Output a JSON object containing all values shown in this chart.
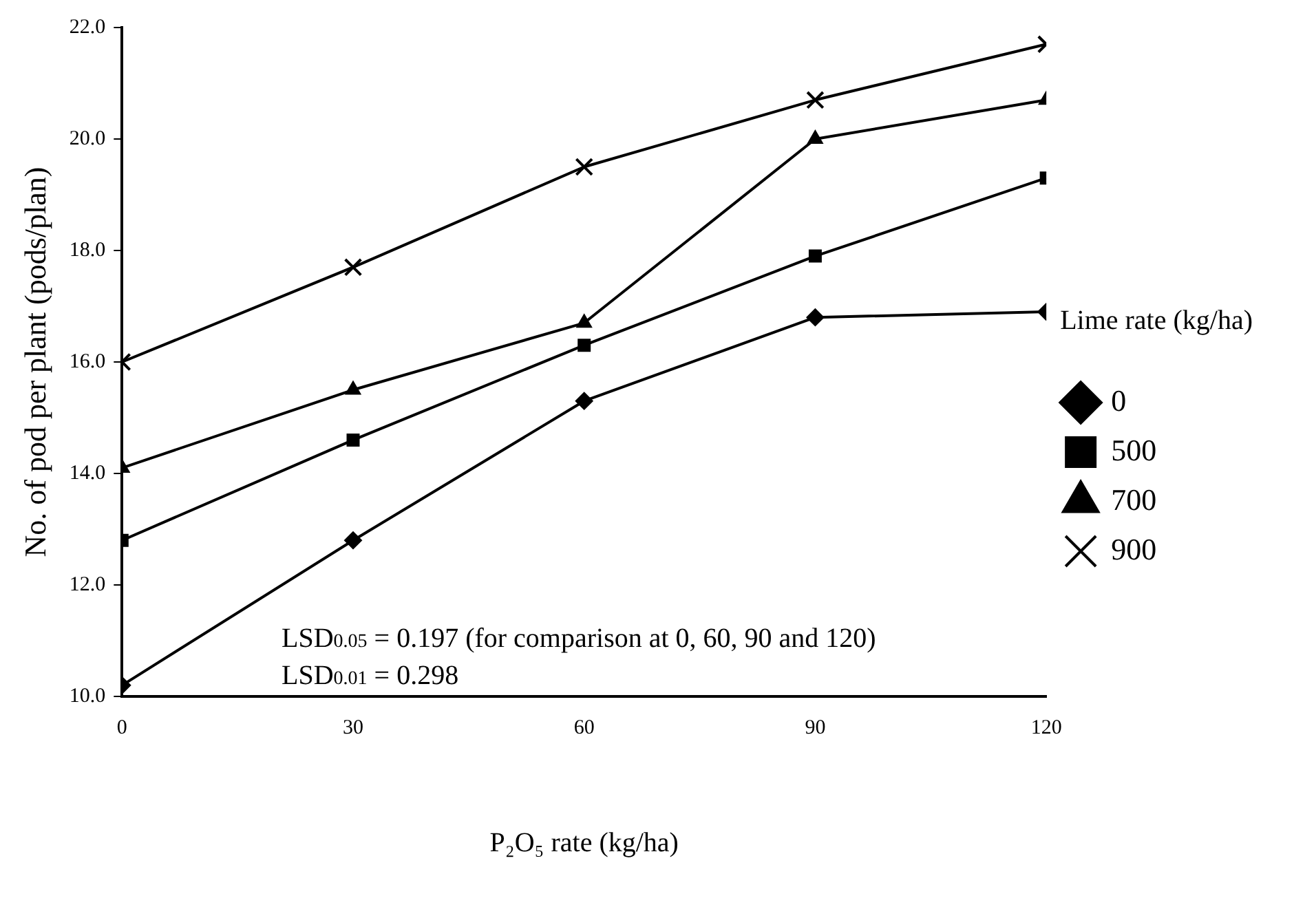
{
  "chart_data": {
    "type": "line",
    "xlabel": "P₂O₅ rate (kg/ha)",
    "ylabel": "No. of pod per plant (pods/plan)",
    "legend_title": "Lime rate (kg/ha)",
    "legend": "right",
    "grid": false,
    "line_style": "solid",
    "x": [
      0,
      30,
      60,
      90,
      120
    ],
    "xlim": [
      0,
      120
    ],
    "xticks": [
      0,
      30,
      60,
      90,
      120
    ],
    "ylim": [
      10,
      22
    ],
    "yticks": [
      {
        "value": 10,
        "label": "10.0"
      },
      {
        "value": 12,
        "label": "12.0"
      },
      {
        "value": 14,
        "label": "14.0"
      },
      {
        "value": 16,
        "label": "16.0"
      },
      {
        "value": 18,
        "label": "18.0"
      },
      {
        "value": 20,
        "label": "20.0"
      },
      {
        "value": 22,
        "label": "22.0"
      }
    ],
    "series": [
      {
        "name": "0",
        "color": "#000000",
        "marker": "diamond",
        "values": [
          10.2,
          12.8,
          15.3,
          16.8,
          16.9
        ]
      },
      {
        "name": "500",
        "color": "#000000",
        "marker": "square",
        "values": [
          12.8,
          14.6,
          16.3,
          17.9,
          19.3
        ]
      },
      {
        "name": "700",
        "color": "#000000",
        "marker": "triangle",
        "values": [
          14.1,
          15.5,
          16.7,
          20.0,
          20.7
        ]
      },
      {
        "name": "900",
        "color": "#000000",
        "marker": "cross",
        "values": [
          16.0,
          17.7,
          19.5,
          20.7,
          21.7
        ]
      }
    ],
    "annotations": [
      "LSD$_{0.05}$ = 0.197 (for comparison at 0, 60, 90 and 120)",
      "LSD$_{0.01}$ = 0.298"
    ]
  }
}
